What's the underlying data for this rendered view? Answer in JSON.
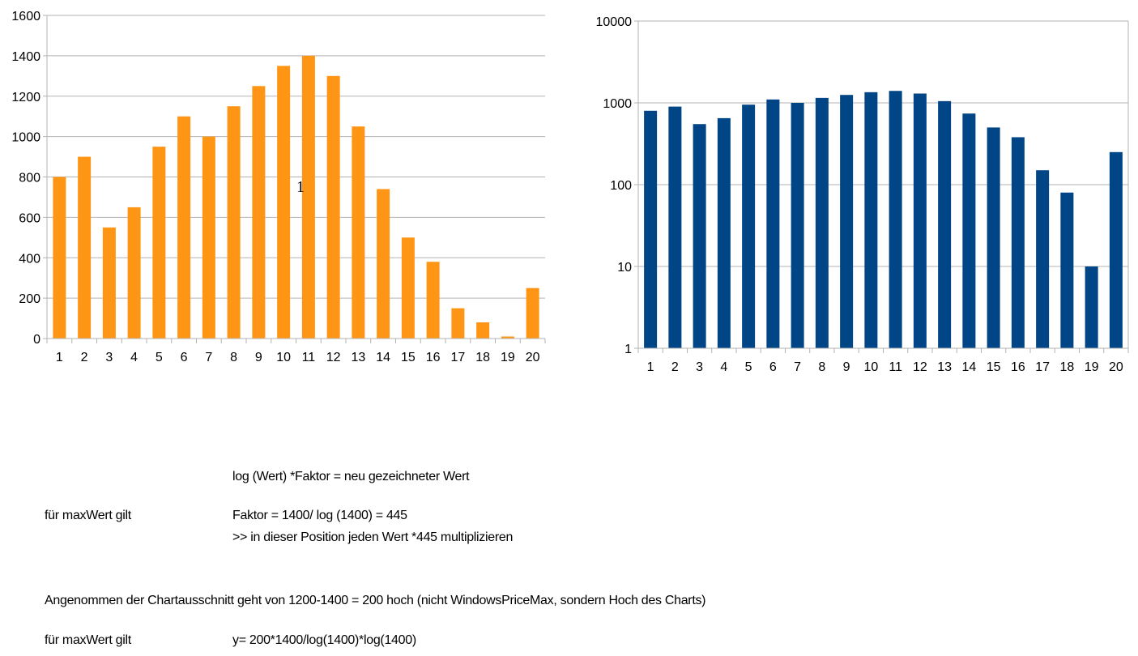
{
  "chart_data": [
    {
      "type": "bar",
      "categories": [
        "1",
        "2",
        "3",
        "4",
        "5",
        "6",
        "7",
        "8",
        "9",
        "10",
        "11",
        "12",
        "13",
        "14",
        "15",
        "16",
        "17",
        "18",
        "19",
        "20"
      ],
      "values": [
        800,
        900,
        550,
        650,
        950,
        1100,
        1000,
        1150,
        1250,
        1350,
        1400,
        1300,
        1050,
        740,
        500,
        380,
        150,
        80,
        10,
        250
      ],
      "ylim": [
        0,
        1600
      ],
      "yticks": [
        "0",
        "200",
        "400",
        "600",
        "800",
        "1000",
        "1200",
        "1400",
        "1600"
      ],
      "grid": true,
      "color": "#ff9514",
      "yscale": "linear"
    },
    {
      "type": "bar",
      "categories": [
        "1",
        "2",
        "3",
        "4",
        "5",
        "6",
        "7",
        "8",
        "9",
        "10",
        "11",
        "12",
        "13",
        "14",
        "15",
        "16",
        "17",
        "18",
        "19",
        "20"
      ],
      "values": [
        800,
        900,
        550,
        650,
        950,
        1100,
        1000,
        1150,
        1250,
        1350,
        1400,
        1300,
        1050,
        740,
        500,
        380,
        150,
        80,
        10,
        250
      ],
      "ylim": [
        1,
        10000
      ],
      "yticks": [
        "1",
        "10",
        "100",
        "1000",
        "10000"
      ],
      "grid": true,
      "color": "#004586",
      "yscale": "log"
    }
  ],
  "stray_glyph": "1",
  "notes": {
    "formula": "log (Wert) *Faktor = neu gezeichneter Wert",
    "label_1": "für maxWert gilt",
    "faktor": "Faktor = 1400/ log (1400) = 445",
    "multiply": ">> in dieser Position jeden Wert *445 multiplizieren",
    "assumption": "Angenommen der Chartausschnitt geht von 1200-1400 = 200 hoch (nicht WindowsPriceMax, sondern Hoch des Charts)",
    "label_2": "für maxWert gilt",
    "y_formula": "y= 200*1400/log(1400)*log(1400)"
  }
}
